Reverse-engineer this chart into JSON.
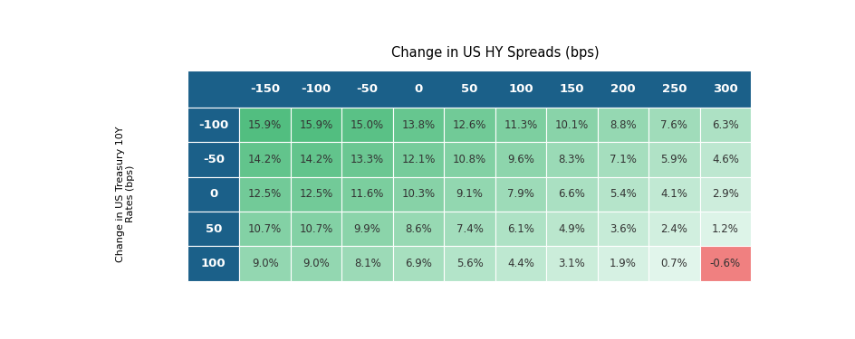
{
  "title": "Change in US HY Spreads (bps)",
  "col_labels": [
    "-150",
    "-100",
    "-50",
    "0",
    "50",
    "100",
    "150",
    "200",
    "250",
    "300"
  ],
  "row_labels": [
    "-100",
    "-50",
    "0",
    "50",
    "100"
  ],
  "ylabel": "Change in US Treasury 10Y\nRates (bps)",
  "values": [
    [
      15.9,
      15.9,
      15.0,
      13.8,
      12.6,
      11.3,
      10.1,
      8.8,
      7.6,
      6.3
    ],
    [
      14.2,
      14.2,
      13.3,
      12.1,
      10.8,
      9.6,
      8.3,
      7.1,
      5.9,
      4.6
    ],
    [
      12.5,
      12.5,
      11.6,
      10.3,
      9.1,
      7.9,
      6.6,
      5.4,
      4.1,
      2.9
    ],
    [
      10.7,
      10.7,
      9.9,
      8.6,
      7.4,
      6.1,
      4.9,
      3.6,
      2.4,
      1.2
    ],
    [
      9.0,
      9.0,
      8.1,
      6.9,
      5.6,
      4.4,
      3.1,
      1.9,
      0.7,
      -0.6
    ]
  ],
  "header_bg": "#1b6089",
  "row_label_bg": "#1b6089",
  "header_text_color": "#ffffff",
  "row_label_text_color": "#ffffff",
  "cell_text_color": "#333333",
  "negative_color": "#f08080",
  "background_color": "#ffffff",
  "title_fontsize": 10.5,
  "cell_fontsize": 8.5,
  "header_fontsize": 9.5,
  "row_label_fontsize": 9.5,
  "ylabel_fontsize": 8
}
